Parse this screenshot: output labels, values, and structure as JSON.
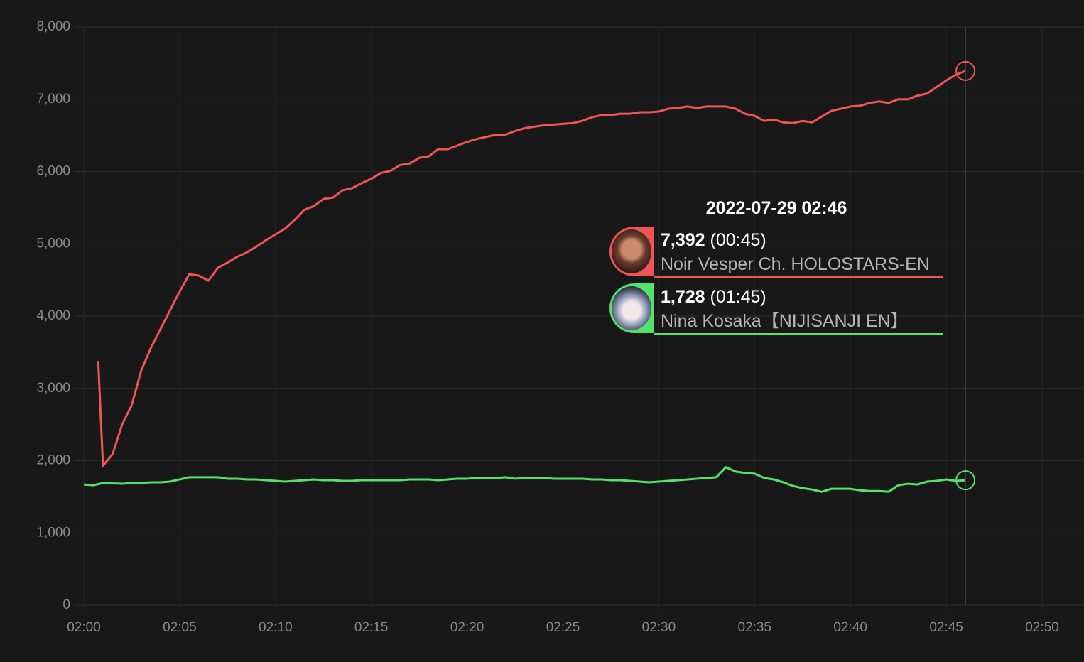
{
  "chart_data": {
    "type": "line",
    "xlim": [
      "02:00",
      "02:50"
    ],
    "xticks": [
      "02:00",
      "02:05",
      "02:10",
      "02:15",
      "02:20",
      "02:25",
      "02:30",
      "02:35",
      "02:40",
      "02:45",
      "02:50"
    ],
    "ylim": [
      0,
      8000
    ],
    "yticks": [
      0,
      {
        "value": 1000,
        "label": "1,000"
      },
      {
        "value": 2000,
        "label": "2,000"
      },
      {
        "value": 3000,
        "label": "3,000"
      },
      {
        "value": 4000,
        "label": "4,000"
      },
      {
        "value": 5000,
        "label": "5,000"
      },
      {
        "value": 6000,
        "label": "6,000"
      },
      {
        "value": 7000,
        "label": "7,000"
      },
      {
        "value": 8000,
        "label": "8,000"
      }
    ],
    "grid": true,
    "series": [
      {
        "name": "Noir Vesper Ch. HOLOSTARS-EN",
        "color": "#f05454",
        "x": [
          "02:00:45",
          "02:01:00",
          "02:01:30",
          "02:02:00",
          "02:02:30",
          "02:03:00",
          "02:03:30",
          "02:04:00",
          "02:04:30",
          "02:05:00",
          "02:05:30",
          "02:06:00",
          "02:06:30",
          "02:07:00",
          "02:07:30",
          "02:08:00",
          "02:08:30",
          "02:09:00",
          "02:09:30",
          "02:10:00",
          "02:10:30",
          "02:11:00",
          "02:11:30",
          "02:12:00",
          "02:12:30",
          "02:13:00",
          "02:13:30",
          "02:14:00",
          "02:14:30",
          "02:15:00",
          "02:15:30",
          "02:16:00",
          "02:16:30",
          "02:17:00",
          "02:17:30",
          "02:18:00",
          "02:18:30",
          "02:19:00",
          "02:19:30",
          "02:20:00",
          "02:20:30",
          "02:21:00",
          "02:21:30",
          "02:22:00",
          "02:22:30",
          "02:23:00",
          "02:23:30",
          "02:24:00",
          "02:24:30",
          "02:25:00",
          "02:25:30",
          "02:26:00",
          "02:26:30",
          "02:27:00",
          "02:27:30",
          "02:28:00",
          "02:28:30",
          "02:29:00",
          "02:29:30",
          "02:30:00",
          "02:30:30",
          "02:31:00",
          "02:31:30",
          "02:32:00",
          "02:32:30",
          "02:33:00",
          "02:33:30",
          "02:34:00",
          "02:34:30",
          "02:35:00",
          "02:35:30",
          "02:36:00",
          "02:36:30",
          "02:37:00",
          "02:37:30",
          "02:38:00",
          "02:38:30",
          "02:39:00",
          "02:39:30",
          "02:40:00",
          "02:40:30",
          "02:41:00",
          "02:41:30",
          "02:42:00",
          "02:42:30",
          "02:43:00",
          "02:43:30",
          "02:44:00",
          "02:44:30",
          "02:45:00",
          "02:45:30",
          "02:46:00"
        ],
        "values": [
          3380,
          1930,
          2090,
          2500,
          2770,
          3250,
          3560,
          3820,
          4080,
          4340,
          4580,
          4560,
          4490,
          4670,
          4740,
          4820,
          4880,
          4960,
          5050,
          5130,
          5210,
          5330,
          5470,
          5520,
          5620,
          5640,
          5740,
          5770,
          5840,
          5900,
          5980,
          6010,
          6090,
          6110,
          6190,
          6210,
          6310,
          6310,
          6360,
          6410,
          6450,
          6480,
          6510,
          6510,
          6560,
          6600,
          6620,
          6640,
          6650,
          6660,
          6670,
          6700,
          6750,
          6780,
          6780,
          6800,
          6800,
          6820,
          6820,
          6830,
          6870,
          6880,
          6900,
          6880,
          6900,
          6900,
          6900,
          6870,
          6800,
          6770,
          6700,
          6720,
          6680,
          6670,
          6700,
          6680,
          6760,
          6840,
          6870,
          6900,
          6910,
          6950,
          6970,
          6950,
          7000,
          7000,
          7050,
          7080,
          7170,
          7260,
          7340,
          7392
        ]
      },
      {
        "name": "Nina Kosaka【NIJISANJI EN】",
        "color": "#54e36a",
        "x": [
          "02:00:00",
          "02:00:30",
          "02:01:00",
          "02:01:30",
          "02:02:00",
          "02:02:30",
          "02:03:00",
          "02:03:30",
          "02:04:00",
          "02:04:30",
          "02:05:00",
          "02:05:30",
          "02:06:00",
          "02:06:30",
          "02:07:00",
          "02:07:30",
          "02:08:00",
          "02:08:30",
          "02:09:00",
          "02:09:30",
          "02:10:00",
          "02:10:30",
          "02:11:00",
          "02:11:30",
          "02:12:00",
          "02:12:30",
          "02:13:00",
          "02:13:30",
          "02:14:00",
          "02:14:30",
          "02:15:00",
          "02:15:30",
          "02:16:00",
          "02:16:30",
          "02:17:00",
          "02:17:30",
          "02:18:00",
          "02:18:30",
          "02:19:00",
          "02:19:30",
          "02:20:00",
          "02:20:30",
          "02:21:00",
          "02:21:30",
          "02:22:00",
          "02:22:30",
          "02:23:00",
          "02:23:30",
          "02:24:00",
          "02:24:30",
          "02:25:00",
          "02:25:30",
          "02:26:00",
          "02:26:30",
          "02:27:00",
          "02:27:30",
          "02:28:00",
          "02:28:30",
          "02:29:00",
          "02:29:30",
          "02:30:00",
          "02:30:30",
          "02:31:00",
          "02:31:30",
          "02:32:00",
          "02:32:30",
          "02:33:00",
          "02:33:30",
          "02:34:00",
          "02:34:30",
          "02:35:00",
          "02:35:30",
          "02:36:00",
          "02:36:30",
          "02:37:00",
          "02:37:30",
          "02:38:00",
          "02:38:30",
          "02:39:00",
          "02:39:30",
          "02:40:00",
          "02:40:30",
          "02:41:00",
          "02:41:30",
          "02:42:00",
          "02:42:30",
          "02:43:00",
          "02:43:30",
          "02:44:00",
          "02:44:30",
          "02:45:00",
          "02:45:30",
          "02:46:00"
        ],
        "values": [
          1670,
          1660,
          1690,
          1685,
          1680,
          1690,
          1690,
          1700,
          1700,
          1710,
          1740,
          1770,
          1770,
          1770,
          1770,
          1750,
          1750,
          1740,
          1740,
          1730,
          1720,
          1710,
          1720,
          1730,
          1740,
          1730,
          1730,
          1720,
          1720,
          1730,
          1730,
          1730,
          1730,
          1730,
          1740,
          1740,
          1740,
          1730,
          1740,
          1750,
          1750,
          1760,
          1760,
          1760,
          1770,
          1750,
          1760,
          1760,
          1760,
          1750,
          1750,
          1750,
          1750,
          1740,
          1740,
          1730,
          1730,
          1720,
          1710,
          1700,
          1710,
          1720,
          1730,
          1740,
          1750,
          1760,
          1770,
          1910,
          1850,
          1830,
          1820,
          1760,
          1740,
          1700,
          1650,
          1620,
          1600,
          1570,
          1610,
          1610,
          1610,
          1590,
          1580,
          1580,
          1570,
          1660,
          1680,
          1670,
          1710,
          1720,
          1740,
          1720,
          1728
        ]
      }
    ],
    "tooltip": {
      "title": "2022-07-29 02:46",
      "labels": [
        "7,392",
        "1,728"
      ],
      "durations": [
        "(00:45)",
        "(01:45)"
      ]
    }
  }
}
